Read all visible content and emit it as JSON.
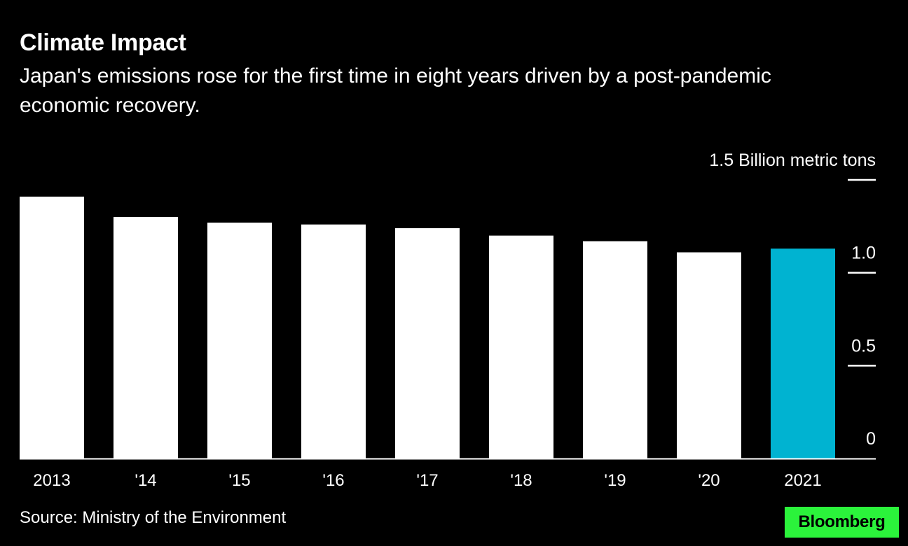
{
  "header": {
    "title": "Climate Impact",
    "subtitle": "Japan's emissions rose for the first time in eight years driven by a post-pandemic economic recovery."
  },
  "footer": {
    "source": "Source: Ministry of the Environment",
    "logo_text": "Bloomberg"
  },
  "colors": {
    "background": "#000000",
    "bar": "#ffffff",
    "highlight": "#00b3d1",
    "text": "#ffffff",
    "logo_bg": "#2bf33b"
  },
  "chart_data": {
    "type": "bar",
    "title": "Climate Impact",
    "subtitle": "Japan's emissions rose for the first time in eight years driven by a post-pandemic economic recovery.",
    "ylabel": "1.5 Billion metric tons",
    "categories": [
      "2013",
      "'14",
      "'15",
      "'16",
      "'17",
      "'18",
      "'19",
      "'20",
      "2021"
    ],
    "values": [
      1.41,
      1.3,
      1.27,
      1.26,
      1.24,
      1.2,
      1.17,
      1.11,
      1.13
    ],
    "highlight_index": 8,
    "ylim": [
      0,
      1.5
    ],
    "yticks": [
      {
        "value": 0,
        "label": "0"
      },
      {
        "value": 0.5,
        "label": "0.5"
      },
      {
        "value": 1.0,
        "label": "1.0"
      },
      {
        "value": 1.5,
        "label": "1.5 Billion metric tons"
      }
    ],
    "y_axis_side": "right",
    "grid": false
  }
}
